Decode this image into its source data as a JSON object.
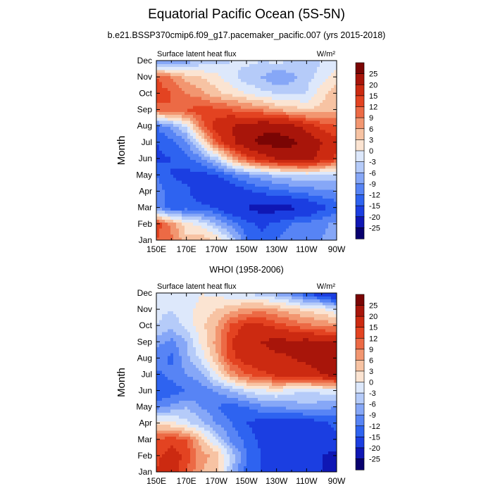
{
  "title": "Equatorial Pacific Ocean (5S-5N)",
  "panel1_title": "b.e21.BSSP370cmip6.f09_g17.pacemaker_pacific.007 (yrs 2015-2018)",
  "panel2_title": "WHOI (1958-2006)",
  "colors": {
    "levels": [
      "#08006e",
      "#0f17b4",
      "#1b3ee1",
      "#2e63f0",
      "#5784f5",
      "#86a7f7",
      "#b5cbf9",
      "#dde8fb",
      "#fbe4d2",
      "#f7c3a3",
      "#f29670",
      "#ec6a45",
      "#e34321",
      "#cc2a11",
      "#a8150a",
      "#7a0504"
    ]
  },
  "chart_data": [
    {
      "type": "heatmap",
      "title": "b.e21.BSSP370cmip6.f09_g17.pacemaker_pacific.007 (yrs 2015-2018)",
      "left_label": "Surface latent heat flux",
      "units": "W/m²",
      "ylabel": "Month",
      "xlabel": "",
      "x_tick_labels": [
        "150E",
        "170E",
        "170W",
        "150W",
        "130W",
        "110W",
        "90W"
      ],
      "y_tick_labels": [
        "Jan",
        "Feb",
        "Mar",
        "Apr",
        "May",
        "Jun",
        "Jul",
        "Aug",
        "Sep",
        "Oct",
        "Nov",
        "Dec"
      ],
      "colorbar_levels": [
        "25",
        "20",
        "15",
        "12",
        "9",
        "6",
        "3",
        "0",
        "-3",
        "-6",
        "-9",
        "-12",
        "-15",
        "-20",
        "-25"
      ],
      "x_lon_east": [
        150,
        160,
        170,
        180,
        190,
        200,
        210,
        220,
        230,
        240,
        250,
        260,
        270
      ],
      "months": [
        "Jan",
        "Feb",
        "Mar",
        "Apr",
        "May",
        "Jun",
        "Jul",
        "Aug",
        "Sep",
        "Oct",
        "Nov",
        "Dec"
      ],
      "values": [
        [
          12,
          10,
          4,
          5,
          3,
          -3,
          -12,
          -14,
          -12,
          -10,
          -9,
          -9,
          -6
        ],
        [
          14,
          8,
          1,
          -1,
          -6,
          -10,
          -14,
          -16,
          -14,
          -12,
          -11,
          -10,
          -8
        ],
        [
          -9,
          -14,
          -13,
          -14,
          -15,
          -19,
          -20,
          -22,
          -22,
          -21,
          -19,
          -16,
          -14
        ],
        [
          -10,
          -14,
          -14,
          -18,
          -20,
          -18,
          -16,
          -14,
          -13,
          -12,
          -11,
          -10,
          -9
        ],
        [
          -12,
          -15,
          -16,
          -17,
          -15,
          -12,
          -9,
          -7,
          -5,
          -4,
          -3,
          -4,
          -5
        ],
        [
          -16,
          -15,
          -13,
          -10,
          -4,
          5,
          12,
          17,
          20,
          22,
          22,
          18,
          14
        ],
        [
          -15,
          -13,
          -10,
          0,
          12,
          19,
          24,
          26,
          27,
          26,
          24,
          20,
          16
        ],
        [
          -12,
          -8,
          -2,
          10,
          17,
          20,
          22,
          24,
          24,
          22,
          18,
          14,
          12
        ],
        [
          10,
          12,
          12,
          14,
          13,
          12,
          10,
          9,
          6,
          5,
          3,
          4,
          5
        ],
        [
          14,
          12,
          9,
          7,
          4,
          2,
          0,
          -2,
          -3,
          -4,
          -3,
          2,
          5
        ],
        [
          12,
          9,
          5,
          3,
          1,
          -2,
          -5,
          -6,
          -9,
          -7,
          -4,
          -2,
          2
        ],
        [
          -10,
          -10,
          -8,
          -5,
          -4,
          -3,
          -2,
          -3,
          -2,
          -3,
          -4,
          -3,
          -2
        ]
      ]
    },
    {
      "type": "heatmap",
      "title": "WHOI (1958-2006)",
      "left_label": "Surface latent heat flux",
      "units": "W/m²",
      "ylabel": "Month",
      "xlabel": "",
      "x_tick_labels": [
        "150E",
        "170E",
        "170W",
        "150W",
        "130W",
        "110W",
        "90W"
      ],
      "y_tick_labels": [
        "Jan",
        "Feb",
        "Mar",
        "Apr",
        "May",
        "Jun",
        "Jul",
        "Aug",
        "Sep",
        "Oct",
        "Nov",
        "Dec"
      ],
      "colorbar_levels": [
        "25",
        "20",
        "15",
        "12",
        "9",
        "6",
        "3",
        "0",
        "-3",
        "-6",
        "-9",
        "-12",
        "-15",
        "-20",
        "-25"
      ],
      "x_lon_east": [
        150,
        160,
        170,
        180,
        190,
        200,
        210,
        220,
        230,
        240,
        250,
        260,
        270
      ],
      "months": [
        "Jan",
        "Feb",
        "Mar",
        "Apr",
        "May",
        "Jun",
        "Jul",
        "Aug",
        "Sep",
        "Oct",
        "Nov",
        "Dec"
      ],
      "values": [
        [
          15,
          18,
          12,
          6,
          4,
          -6,
          -13,
          -15,
          -16,
          -17,
          -18,
          -20,
          -21
        ],
        [
          14,
          17,
          14,
          7,
          5,
          -4,
          -12,
          -15,
          -16,
          -18,
          -19,
          -20,
          -22
        ],
        [
          12,
          14,
          12,
          4,
          -3,
          -10,
          -13,
          -16,
          -17,
          -18,
          -19,
          -17,
          -16
        ],
        [
          2,
          1,
          -2,
          -5,
          -9,
          -12,
          -15,
          -17,
          -18,
          -19,
          -18,
          -16,
          -14
        ],
        [
          -10,
          -8,
          -6,
          -9,
          -12,
          -14,
          -12,
          -10,
          -9,
          -8,
          -7,
          -8,
          -9
        ],
        [
          -15,
          -14,
          -12,
          -11,
          -9,
          -6,
          -3,
          -1,
          0,
          -2,
          -3,
          -2,
          -2
        ],
        [
          -13,
          -11,
          -9,
          -7,
          0,
          7,
          12,
          14,
          16,
          17,
          18,
          20,
          22
        ],
        [
          -10,
          -13,
          -7,
          -2,
          5,
          14,
          17,
          18,
          19,
          20,
          21,
          22,
          21
        ],
        [
          -8,
          -10,
          -6,
          1,
          7,
          15,
          18,
          20,
          22,
          21,
          22,
          20,
          20
        ],
        [
          -3,
          -5,
          -2,
          2,
          6,
          13,
          16,
          16,
          14,
          12,
          10,
          9,
          8
        ],
        [
          -2,
          -3,
          -1,
          1,
          3,
          5,
          7,
          8,
          6,
          4,
          2,
          1,
          -3
        ],
        [
          -1,
          -3,
          -2,
          0,
          -1,
          -2,
          -3,
          -5,
          -7,
          -10,
          -15,
          -18,
          -22
        ]
      ]
    }
  ]
}
